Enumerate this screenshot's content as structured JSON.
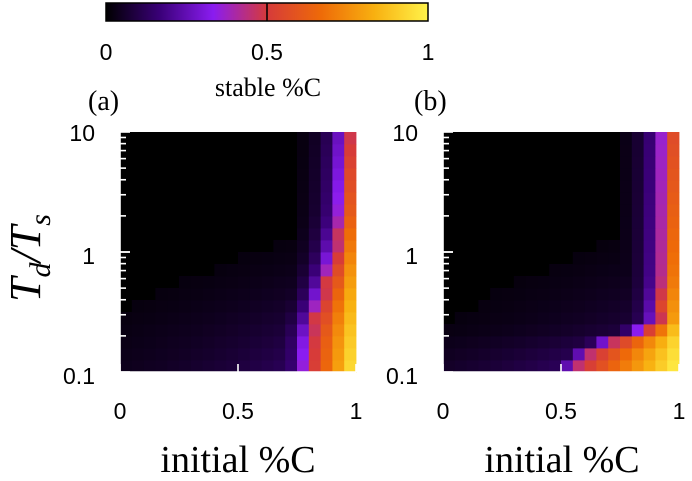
{
  "colorbar": {
    "ticks": [
      "0",
      "0.5",
      "1"
    ],
    "label": "stable %C",
    "colormap": [
      "#000000",
      "#3a0078",
      "#8a1cf0",
      "#d63a3a",
      "#ee6a08",
      "#f8b010",
      "#fff34a"
    ]
  },
  "chart_data": [
    {
      "type": "heatmap",
      "panel_label": "(a)",
      "xlabel": "initial %C",
      "ylabel": "T_d/T_s",
      "xlim": [
        0,
        1
      ],
      "ylim": [
        0.1,
        10
      ],
      "ylog": true,
      "x_ticks": [
        "0",
        "0.5",
        "1"
      ],
      "y_ticks": [
        "0.1",
        "1",
        "10"
      ],
      "grid_size": [
        20,
        20
      ],
      "value_range": [
        0,
        1
      ],
      "boundary": [
        {
          "x": 0.8,
          "y": 0.1
        },
        {
          "x": 0.81,
          "y": 0.2
        },
        {
          "x": 0.84,
          "y": 0.32
        },
        {
          "x": 0.88,
          "y": 0.55
        },
        {
          "x": 0.92,
          "y": 1.0
        },
        {
          "x": 0.95,
          "y": 2.0
        },
        {
          "x": 0.97,
          "y": 10.0
        }
      ]
    },
    {
      "type": "heatmap",
      "panel_label": "(b)",
      "xlabel": "initial %C",
      "ylabel": "",
      "xlim": [
        0,
        1
      ],
      "ylim": [
        0.1,
        10
      ],
      "ylog": true,
      "x_ticks": [
        "0",
        "0.5",
        "1"
      ],
      "y_ticks": [
        "0.1",
        "1",
        "10"
      ],
      "grid_size": [
        20,
        20
      ],
      "value_range": [
        0,
        1
      ],
      "boundary": [
        {
          "x": 0.55,
          "y": 0.1
        },
        {
          "x": 0.62,
          "y": 0.14
        },
        {
          "x": 0.72,
          "y": 0.18
        },
        {
          "x": 0.85,
          "y": 0.22
        },
        {
          "x": 0.92,
          "y": 0.28
        },
        {
          "x": 0.94,
          "y": 0.6
        },
        {
          "x": 0.95,
          "y": 10.0
        }
      ]
    }
  ]
}
